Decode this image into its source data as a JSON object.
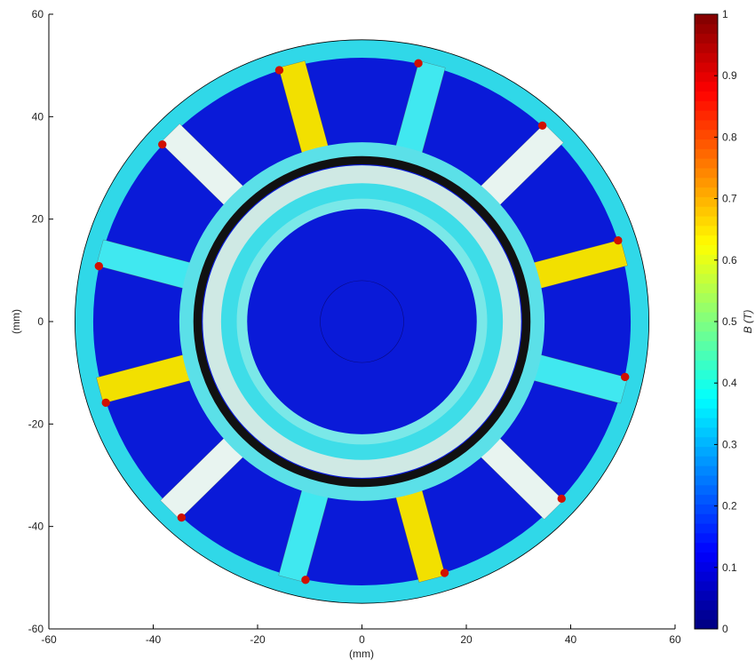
{
  "chart_data": {
    "type": "field",
    "xlabel": "(mm)",
    "ylabel": "(mm)",
    "xlim": [
      -60,
      60
    ],
    "xticks": [
      -60,
      -40,
      -20,
      0,
      20,
      40,
      60
    ],
    "ylim": [
      -60,
      60
    ],
    "yticks": [
      -60,
      -40,
      -20,
      0,
      20,
      40,
      60
    ],
    "colorbar": {
      "label": "B (T)",
      "colormap": "jet",
      "clim": [
        0,
        1
      ],
      "ticks": [
        0,
        0.1,
        0.2,
        0.3,
        0.4,
        0.5,
        0.6,
        0.7,
        0.8,
        0.9,
        1
      ]
    }
  }
}
